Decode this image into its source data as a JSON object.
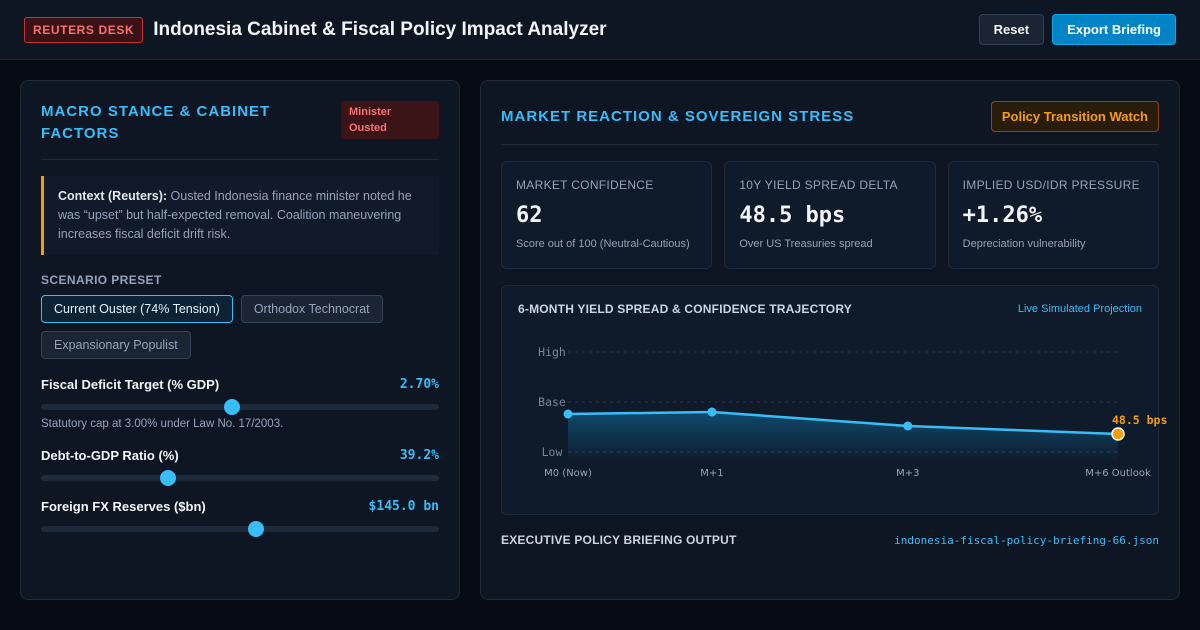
{
  "header": {
    "brand_tag": "REUTERS DESK",
    "title": "Indonesia Cabinet & Fiscal Policy Impact Analyzer",
    "reset_label": "Reset",
    "export_label": "Export Briefing"
  },
  "left_panel": {
    "title": "Macro Stance & Cabinet Factors",
    "status_badge": "Minister Ousted",
    "context_lead": "Context (Reuters):",
    "context_body": "Ousted Indonesia finance minister noted he was “upset” but half-expected removal. Coalition maneuvering increases fiscal deficit drift risk.",
    "preset_label": "Scenario Preset",
    "presets": [
      {
        "label": "Current Ouster (74% Tension)",
        "active": true
      },
      {
        "label": "Orthodox Technocrat",
        "active": false
      },
      {
        "label": "Expansionary Populist",
        "active": false
      }
    ],
    "sliders": [
      {
        "label": "Fiscal Deficit Target (% GDP)",
        "value": "2.70%",
        "position": 0.48,
        "note": "Statutory cap at 3.00% under Law No. 17/2003."
      },
      {
        "label": "Debt-to-GDP Ratio (%)",
        "value": "39.2%",
        "position": 0.32,
        "note": ""
      },
      {
        "label": "Foreign FX Reserves ($bn)",
        "value": "$145.0 bn",
        "position": 0.54,
        "note": ""
      }
    ]
  },
  "right_panel": {
    "title": "Market Reaction & Sovereign Stress",
    "watch_badge": "Policy Transition Watch",
    "metrics": [
      {
        "label": "Market Confidence",
        "value": "62",
        "sub": "Score out of 100 (Neutral-Cautious)"
      },
      {
        "label": "10Y Yield Spread Delta",
        "value": "48.5 bps",
        "sub": "Over US Treasuries spread"
      },
      {
        "label": "Implied USD/IDR Pressure",
        "value": "+1.26%",
        "sub": "Depreciation vulnerability"
      }
    ],
    "chart_title": "6-Month Yield Spread & Confidence Trajectory",
    "chart_tag": "Live Simulated Projection",
    "briefing_title": "Executive Policy Briefing Output",
    "briefing_file": "indonesia-fiscal-policy-briefing-66.json"
  },
  "colors": {
    "accent": "#38bdf8",
    "alert": "#f87171",
    "warning": "#f59e0b",
    "background": "#070c14",
    "panel": "#0e1624"
  },
  "chart_data": {
    "type": "line",
    "title": "6-Month Yield Spread & Confidence Trajectory",
    "x": [
      "M0 (Now)",
      "M+1",
      "M+3",
      "M+6 Outlook"
    ],
    "x_months": [
      0,
      1,
      2.36,
      3.82
    ],
    "y_levels": [
      "Low",
      "Base",
      "High"
    ],
    "values": [
      0.38,
      0.4,
      0.26,
      0.18
    ],
    "final_label": "48.5 bps",
    "grid": true
  }
}
